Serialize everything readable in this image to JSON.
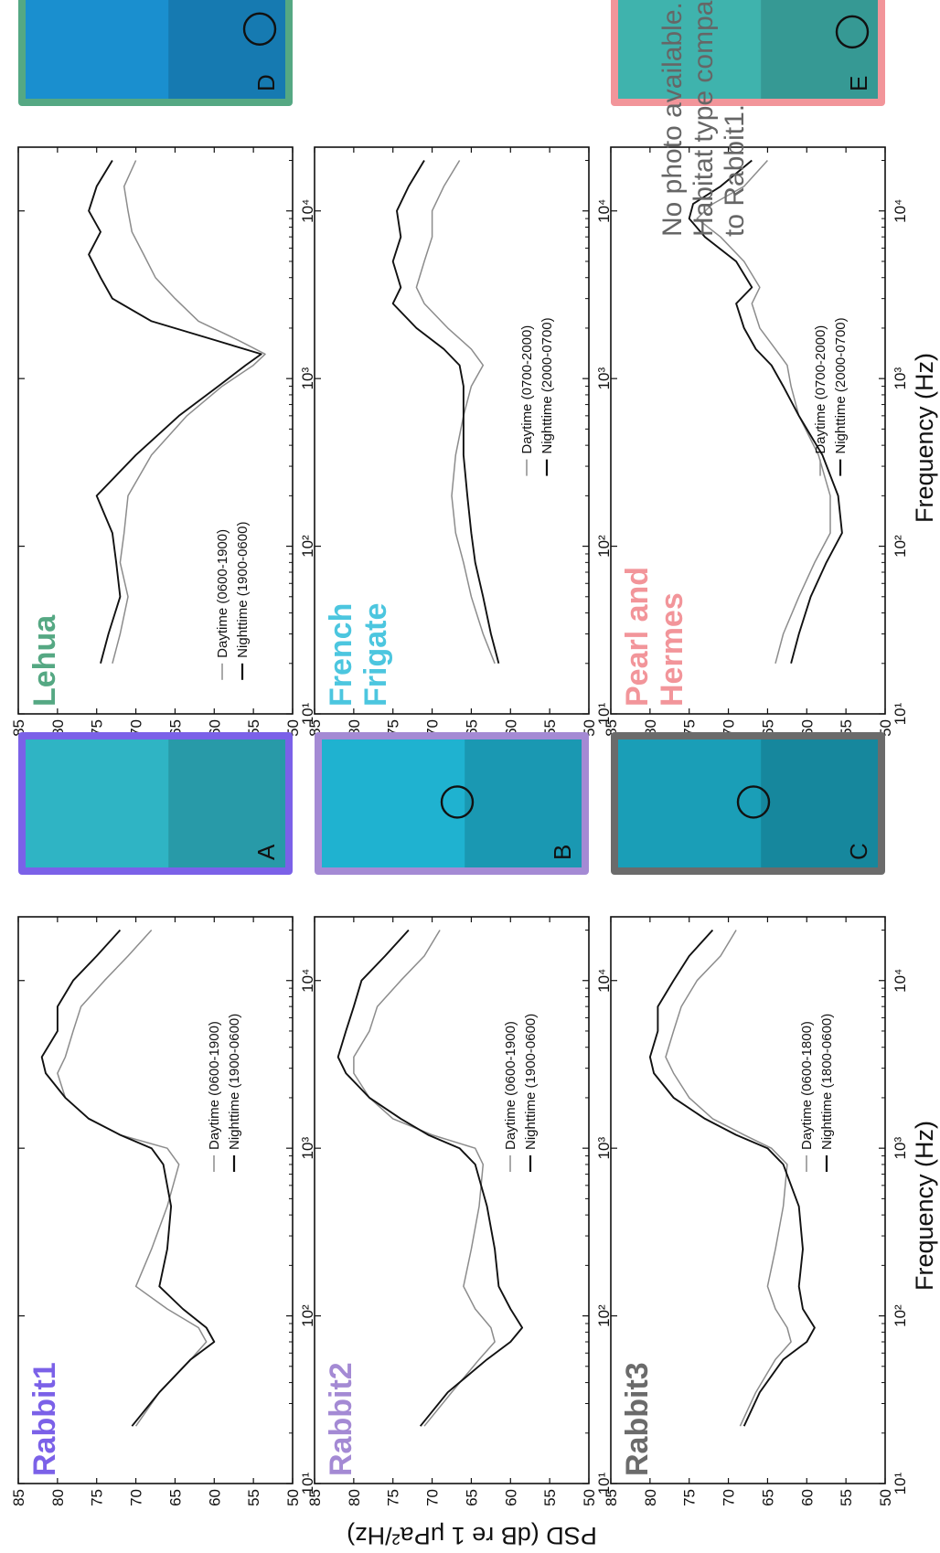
{
  "figure": {
    "y_axis_label": "PSD (dB re 1 μPa²/Hz)",
    "x_axis_label": "Frequency (Hz)",
    "no_photo_note": [
      "No photo available.",
      "Habitat type comparable",
      "to Rabbit1."
    ]
  },
  "photos": [
    {
      "letter": "A",
      "site": "Rabbit1",
      "frame_color": "#7b61e8",
      "water_color": "#2fb4c4"
    },
    {
      "letter": "B",
      "site": "Rabbit2",
      "frame_color": "#a48ad4",
      "water_color": "#1fb2d0"
    },
    {
      "letter": "C",
      "site": "Rabbit3",
      "frame_color": "#6b6b6b",
      "water_color": "#1a9eb7"
    },
    {
      "letter": "D",
      "site": "Lehua",
      "frame_color": "#55a883",
      "water_color": "#1a8fcf"
    },
    {
      "letter": "E",
      "site": "Pearl and Hermes",
      "frame_color": "#f2959a",
      "water_color": "#3fb3ad"
    }
  ],
  "chart_data": [
    {
      "type": "line",
      "title": "Rabbit1",
      "title_color": "#7b61e8",
      "x_scale": "log",
      "xlim": [
        10,
        24000
      ],
      "ylim": [
        50,
        85
      ],
      "x_ticks": [
        "10¹",
        "10²",
        "10³",
        "10⁴"
      ],
      "y_ticks": [
        85,
        80,
        75,
        70,
        65,
        60,
        55,
        50
      ],
      "series": [
        {
          "name": "Daytime (0600-1900)",
          "color": "#8c8c8c",
          "x": [
            22,
            35,
            55,
            70,
            85,
            110,
            150,
            250,
            450,
            800,
            1000,
            1200,
            1500,
            2000,
            2800,
            3500,
            5000,
            7000,
            10000,
            14000,
            20000
          ],
          "y": [
            70,
            67,
            63,
            61,
            62,
            66,
            70,
            68,
            66,
            64.5,
            66,
            72,
            76,
            79,
            80,
            79,
            78,
            77,
            74,
            71,
            68
          ]
        },
        {
          "name": "Nighttime (1900-0600)",
          "color": "#111111",
          "x": [
            22,
            35,
            55,
            70,
            85,
            110,
            150,
            250,
            450,
            800,
            1000,
            1200,
            1500,
            2000,
            2800,
            3500,
            5000,
            7000,
            10000,
            14000,
            20000
          ],
          "y": [
            70.5,
            67,
            63,
            60,
            61,
            64,
            67,
            66,
            65.5,
            66.5,
            68,
            72,
            76,
            79,
            81.5,
            82,
            80,
            80,
            78,
            75,
            72
          ]
        }
      ]
    },
    {
      "type": "line",
      "title": "Rabbit2",
      "title_color": "#a48ad4",
      "x_scale": "log",
      "xlim": [
        10,
        24000
      ],
      "ylim": [
        50,
        85
      ],
      "x_ticks": [
        "10¹",
        "10²",
        "10³",
        "10⁴"
      ],
      "y_ticks": [
        85,
        80,
        75,
        70,
        65,
        60,
        55,
        50
      ],
      "series": [
        {
          "name": "Daytime (0600-1900)",
          "color": "#8c8c8c",
          "x": [
            22,
            35,
            55,
            70,
            85,
            110,
            150,
            250,
            450,
            800,
            1000,
            1200,
            1500,
            2000,
            2800,
            3500,
            5000,
            7000,
            10000,
            14000,
            20000
          ],
          "y": [
            71,
            67.5,
            64,
            62,
            62.5,
            64.5,
            66,
            65,
            64,
            63.5,
            64.5,
            70,
            75,
            78,
            80,
            80,
            78,
            77,
            74,
            71,
            69
          ]
        },
        {
          "name": "Nighttime (1900-0600)",
          "color": "#111111",
          "x": [
            22,
            35,
            55,
            70,
            85,
            110,
            150,
            250,
            450,
            800,
            1000,
            1200,
            1500,
            2000,
            2800,
            3500,
            5000,
            7000,
            10000,
            14000,
            20000
          ],
          "y": [
            71.5,
            68,
            63,
            60,
            58.5,
            60,
            61.5,
            62,
            63,
            64.5,
            66.5,
            70.5,
            74,
            78,
            81,
            82,
            81,
            80,
            79,
            76,
            73
          ]
        }
      ]
    },
    {
      "type": "line",
      "title": "Rabbit3",
      "title_color": "#6b6b6b",
      "x_scale": "log",
      "xlim": [
        10,
        24000
      ],
      "ylim": [
        50,
        85
      ],
      "x_ticks": [
        "10¹",
        "10²",
        "10³",
        "10⁴"
      ],
      "y_ticks": [
        85,
        80,
        75,
        70,
        65,
        60,
        55,
        50
      ],
      "series": [
        {
          "name": "Daytime (0600-1800)",
          "color": "#8c8c8c",
          "x": [
            22,
            35,
            55,
            70,
            85,
            110,
            150,
            250,
            450,
            800,
            1000,
            1200,
            1500,
            2000,
            2800,
            3500,
            5000,
            7000,
            10000,
            14000,
            20000
          ],
          "y": [
            68.5,
            66.5,
            64,
            62,
            62.5,
            64,
            65,
            64,
            63,
            62.5,
            64.5,
            68,
            72,
            75,
            77,
            78,
            77,
            76,
            74,
            71,
            69
          ]
        },
        {
          "name": "Nighttime (1800-0600)",
          "color": "#111111",
          "x": [
            22,
            35,
            55,
            70,
            85,
            110,
            150,
            250,
            450,
            800,
            1000,
            1200,
            1500,
            2000,
            2800,
            3500,
            5000,
            7000,
            10000,
            14000,
            20000
          ],
          "y": [
            68,
            66,
            63,
            60,
            59,
            60.5,
            61,
            60.5,
            61,
            63,
            65,
            69,
            73,
            77,
            79.5,
            80,
            79,
            79,
            77,
            75,
            72
          ]
        }
      ]
    },
    {
      "type": "line",
      "title": "Lehua",
      "title_color": "#55a883",
      "x_scale": "log",
      "xlim": [
        10,
        24000
      ],
      "ylim": [
        50,
        85
      ],
      "x_ticks": [
        "10¹",
        "10²",
        "10³",
        "10⁴"
      ],
      "y_ticks": [
        85,
        80,
        75,
        70,
        65,
        60,
        55,
        50
      ],
      "series": [
        {
          "name": "Daytime (0600-1900)",
          "color": "#8c8c8c",
          "x": [
            20,
            30,
            50,
            80,
            120,
            200,
            350,
            600,
            900,
            1200,
            1400,
            1700,
            2200,
            3000,
            4000,
            5500,
            7500,
            10000,
            14000,
            20000
          ],
          "y": [
            73,
            72,
            71,
            72,
            71.5,
            71,
            68,
            63.5,
            59,
            55,
            53.5,
            57,
            62,
            65,
            67.5,
            69,
            70.5,
            71,
            71.5,
            70
          ]
        },
        {
          "name": "Nighttime (1900-0600)",
          "color": "#111111",
          "x": [
            20,
            30,
            50,
            80,
            120,
            200,
            350,
            600,
            900,
            1200,
            1400,
            1700,
            2200,
            3000,
            4000,
            5500,
            7500,
            10000,
            14000,
            20000
          ],
          "y": [
            74.5,
            73.5,
            72,
            72.5,
            73,
            75,
            70,
            64.5,
            59.5,
            56,
            54,
            60,
            68,
            73,
            74.5,
            76,
            74.5,
            76,
            75,
            73
          ]
        }
      ]
    },
    {
      "type": "line",
      "title": "French Frigate",
      "title_color": "#4cc6df",
      "x_scale": "log",
      "xlim": [
        10,
        24000
      ],
      "ylim": [
        50,
        85
      ],
      "x_ticks": [
        "10¹",
        "10²",
        "10³",
        "10⁴"
      ],
      "y_ticks": [
        85,
        80,
        75,
        70,
        65,
        60,
        55,
        50
      ],
      "series": [
        {
          "name": "Daytime (0700-2000)",
          "color": "#8c8c8c",
          "x": [
            20,
            30,
            50,
            80,
            120,
            200,
            350,
            600,
            900,
            1200,
            1500,
            2000,
            2800,
            3500,
            5000,
            7000,
            10000,
            14000,
            20000
          ],
          "y": [
            62,
            63.5,
            65,
            66,
            67,
            67.5,
            67,
            66,
            65,
            63.5,
            65,
            68,
            71,
            72,
            71,
            70,
            70,
            68.5,
            66.5
          ]
        },
        {
          "name": "Nighttime (2000-0700)",
          "color": "#111111",
          "x": [
            20,
            30,
            50,
            80,
            120,
            200,
            350,
            600,
            900,
            1200,
            1500,
            2000,
            2800,
            3500,
            5000,
            7000,
            10000,
            14000,
            20000
          ],
          "y": [
            61.5,
            62.5,
            63.5,
            64.5,
            65,
            65.5,
            66,
            66,
            66,
            66.5,
            68.5,
            72,
            75,
            74,
            75,
            74,
            74.5,
            73,
            71
          ]
        }
      ]
    },
    {
      "type": "line",
      "title": "Pearl and Hermes",
      "title_color": "#f2959a",
      "x_scale": "log",
      "xlim": [
        10,
        24000
      ],
      "ylim": [
        50,
        85
      ],
      "x_ticks": [
        "10¹",
        "10²",
        "10³",
        "10⁴"
      ],
      "y_ticks": [
        85,
        80,
        75,
        70,
        65,
        60,
        55,
        50
      ],
      "series": [
        {
          "name": "Daytime (0700-2000)",
          "color": "#8c8c8c",
          "x": [
            20,
            30,
            50,
            80,
            120,
            200,
            350,
            600,
            900,
            1200,
            1500,
            2000,
            2800,
            3500,
            5000,
            7000,
            9000,
            11000,
            14000,
            20000
          ],
          "y": [
            64,
            63,
            61,
            59,
            57,
            57,
            58.5,
            61,
            62,
            62.5,
            64,
            66,
            67,
            66,
            68,
            71,
            74,
            72,
            68,
            65
          ]
        },
        {
          "name": "Nighttime (2000-0700)",
          "color": "#111111",
          "x": [
            20,
            30,
            50,
            80,
            120,
            200,
            350,
            600,
            900,
            1200,
            1500,
            2000,
            2800,
            3500,
            5000,
            7000,
            9000,
            11000,
            14000,
            20000
          ],
          "y": [
            62,
            61,
            59.5,
            57.5,
            55.5,
            56,
            58,
            61,
            63,
            64.5,
            66.5,
            68,
            69,
            67,
            69,
            73,
            75,
            74.5,
            71,
            67
          ]
        }
      ]
    }
  ]
}
